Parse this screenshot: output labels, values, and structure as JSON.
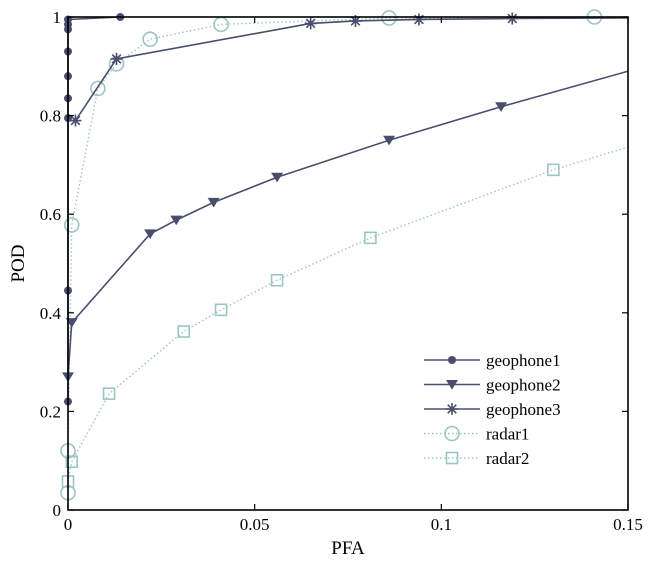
{
  "chart_data": {
    "type": "line",
    "title": "",
    "xlabel": "PFA",
    "ylabel": "POD",
    "xlim": [
      0,
      0.15
    ],
    "ylim": [
      0,
      1
    ],
    "xticks": [
      0,
      0.05,
      0.1,
      0.15
    ],
    "xtick_labels": [
      "0",
      "0.05",
      "0.1",
      "0.15"
    ],
    "yticks": [
      0,
      0.2,
      0.4,
      0.6,
      0.8,
      1
    ],
    "ytick_labels": [
      "0",
      "0.2",
      "0.4",
      "0.6",
      "0.8",
      "1"
    ],
    "grid": false,
    "legend_position": "bottom-right",
    "series": [
      {
        "name": "geophone1",
        "color": "#4a4e6e",
        "line_style": "solid",
        "marker": "filled-circle",
        "x": [
          0,
          0,
          0,
          0,
          0,
          0,
          0,
          0,
          0,
          0.014
        ],
        "y": [
          0.22,
          0.445,
          0.795,
          0.835,
          0.88,
          0.93,
          0.975,
          0.985,
          0.995,
          1.0
        ]
      },
      {
        "name": "geophone2",
        "color": "#4a4e6e",
        "line_style": "solid",
        "marker": "filled-triangle-down",
        "x": [
          0,
          0.001,
          0.022,
          0.029,
          0.039,
          0.056,
          0.086,
          0.116,
          0.15
        ],
        "y": [
          0.27,
          0.38,
          0.56,
          0.588,
          0.624,
          0.675,
          0.75,
          0.818,
          0.89
        ]
      },
      {
        "name": "geophone3",
        "color": "#4a4e6e",
        "line_style": "solid",
        "marker": "asterisk",
        "x": [
          0.002,
          0.013,
          0.065,
          0.077,
          0.094,
          0.119,
          0.15
        ],
        "y": [
          0.79,
          0.915,
          0.987,
          0.992,
          0.995,
          0.997,
          0.998
        ]
      },
      {
        "name": "radar1",
        "color": "#9bc5c1",
        "line_style": "dotted",
        "marker": "hollow-circle",
        "x": [
          0,
          0,
          0.001,
          0.008,
          0.013,
          0.022,
          0.041,
          0.086,
          0.141
        ],
        "y": [
          0.035,
          0.12,
          0.578,
          0.855,
          0.905,
          0.955,
          0.985,
          0.998,
          1.0
        ]
      },
      {
        "name": "radar2",
        "color": "#9bc5c1",
        "line_style": "dotted",
        "marker": "hollow-square",
        "x": [
          0,
          0.001,
          0.011,
          0.031,
          0.041,
          0.056,
          0.081,
          0.13,
          0.15
        ],
        "y": [
          0.058,
          0.098,
          0.236,
          0.362,
          0.406,
          0.466,
          0.552,
          0.69,
          0.736
        ]
      }
    ]
  }
}
